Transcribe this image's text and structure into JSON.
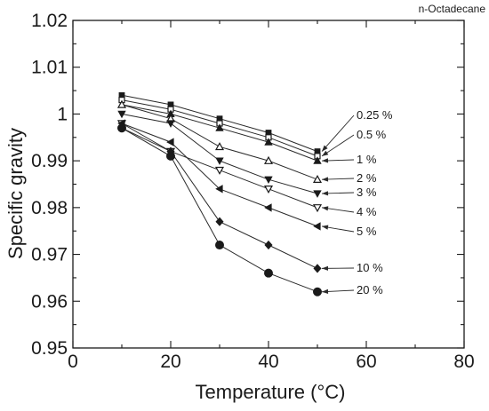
{
  "chart_data": {
    "type": "line",
    "title": "n-Octadecane",
    "xlabel": "Temperature (°C)",
    "ylabel": "Specific gravity",
    "xlim": [
      0,
      80
    ],
    "ylim": [
      0.95,
      1.02
    ],
    "x_ticks": [
      "0",
      "20",
      "40",
      "60",
      "80"
    ],
    "y_ticks": [
      "0.95",
      "0.96",
      "0.97",
      "0.98",
      "0.99",
      "1",
      "1.01",
      "1.02"
    ],
    "grid": false,
    "legend": "inline labels with arrows at right",
    "x": [
      10,
      20,
      30,
      40,
      50
    ],
    "series": [
      {
        "name": "0.25 %",
        "marker": "square-filled",
        "values": [
          1.004,
          1.002,
          0.999,
          0.996,
          0.992
        ]
      },
      {
        "name": "0.5 %",
        "marker": "square-open",
        "values": [
          1.003,
          1.001,
          0.998,
          0.995,
          0.991
        ]
      },
      {
        "name": "1 %",
        "marker": "triangle-up-filled",
        "values": [
          1.002,
          1.0,
          0.997,
          0.994,
          0.99
        ]
      },
      {
        "name": "2 %",
        "marker": "triangle-up-open",
        "values": [
          1.002,
          0.999,
          0.993,
          0.99,
          0.986
        ]
      },
      {
        "name": "3 %",
        "marker": "triangle-down-filled",
        "values": [
          1.0,
          0.998,
          0.99,
          0.986,
          0.983
        ]
      },
      {
        "name": "4 %",
        "marker": "triangle-down-open",
        "values": [
          0.998,
          0.992,
          0.988,
          0.984,
          0.98
        ]
      },
      {
        "name": "5 %",
        "marker": "triangle-left-filled",
        "values": [
          0.998,
          0.994,
          0.984,
          0.98,
          0.976
        ]
      },
      {
        "name": "10 %",
        "marker": "diamond-filled",
        "values": [
          0.997,
          0.992,
          0.977,
          0.972,
          0.967
        ]
      },
      {
        "name": "20 %",
        "marker": "circle-filled",
        "values": [
          0.997,
          0.991,
          0.972,
          0.966,
          0.962
        ]
      }
    ]
  }
}
